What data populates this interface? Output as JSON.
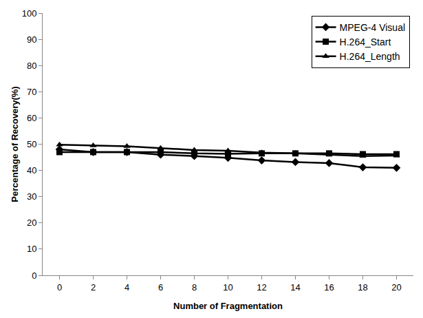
{
  "chart_data": {
    "type": "line",
    "x_label": "Number of Fragmentation",
    "y_label": "Percentage of Recovery(%)",
    "categories": [
      "0",
      "2",
      "4",
      "6",
      "8",
      "10",
      "12",
      "14",
      "16",
      "18",
      "20"
    ],
    "series": [
      {
        "name": "MPEG-4 Visual",
        "color": "#000000",
        "marker": "diamond",
        "values": [
          48,
          47,
          47,
          46,
          45.5,
          44.8,
          43.8,
          43.2,
          42.8,
          41.2,
          41
        ]
      },
      {
        "name": "H.264_Start",
        "color": "#000000",
        "marker": "square",
        "values": [
          47,
          47,
          47,
          47,
          46.5,
          46.3,
          46.5,
          46.5,
          46.5,
          46.2,
          46.2
        ]
      },
      {
        "name": "H.264_Length",
        "color": "#000000",
        "marker": "triangle",
        "values": [
          49.8,
          49.5,
          49.2,
          48.5,
          47.8,
          47.5,
          46.8,
          46.5,
          46,
          45.5,
          45.7
        ]
      }
    ],
    "ylim": [
      0,
      100
    ],
    "yticks": [
      0,
      10,
      20,
      30,
      40,
      50,
      60,
      70,
      80,
      90,
      100
    ],
    "grid": false,
    "legend": "upper right"
  }
}
